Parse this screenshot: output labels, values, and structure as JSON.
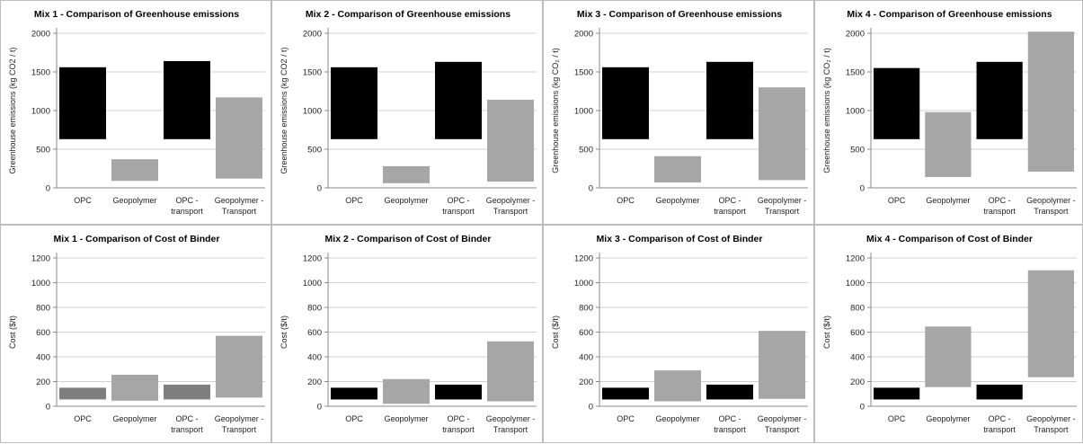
{
  "chart_data": [
    {
      "type": "bar",
      "title": "Mix 1 - Comparison  of Greenhouse emissions",
      "ylabel": "Greenhouse emissions (kg CO2 / t)",
      "ylim": [
        0,
        2000
      ],
      "yticks": [
        0,
        500,
        1000,
        1500,
        2000
      ],
      "categories": [
        "OPC",
        "Geopolymer",
        "OPC -\ntransport",
        "Geopolymer -\nTransport"
      ],
      "bars": [
        {
          "low": 630,
          "high": 1560,
          "color": "#000000"
        },
        {
          "low": 90,
          "high": 370,
          "color": "#a6a6a6"
        },
        {
          "low": 630,
          "high": 1640,
          "color": "#000000"
        },
        {
          "low": 120,
          "high": 1170,
          "color": "#a6a6a6"
        }
      ],
      "grid": true
    },
    {
      "type": "bar",
      "title": "Mix 2 - Comparison  of Greenhouse emissions",
      "ylabel": "Greenhouse emissions (kg CO2 / t)",
      "ylim": [
        0,
        2000
      ],
      "yticks": [
        0,
        500,
        1000,
        1500,
        2000
      ],
      "categories": [
        "OPC",
        "Geopolymer",
        "OPC -\ntransport",
        "Geopolymer -\nTransport"
      ],
      "bars": [
        {
          "low": 630,
          "high": 1560,
          "color": "#000000"
        },
        {
          "low": 60,
          "high": 280,
          "color": "#a6a6a6"
        },
        {
          "low": 630,
          "high": 1630,
          "color": "#000000"
        },
        {
          "low": 80,
          "high": 1140,
          "color": "#a6a6a6"
        }
      ],
      "grid": true
    },
    {
      "type": "bar",
      "title": "Mix 3 - Comparison  of Greenhouse emissions",
      "ylabel": "Greenhouse emissions (kg CO₂ / t)",
      "ylim": [
        0,
        2000
      ],
      "yticks": [
        0,
        500,
        1000,
        1500,
        2000
      ],
      "categories": [
        "OPC",
        "Geopolymer",
        "OPC -\ntransport",
        "Geopolymer -\nTransport"
      ],
      "bars": [
        {
          "low": 630,
          "high": 1560,
          "color": "#000000"
        },
        {
          "low": 70,
          "high": 410,
          "color": "#a6a6a6"
        },
        {
          "low": 630,
          "high": 1630,
          "color": "#000000"
        },
        {
          "low": 100,
          "high": 1300,
          "color": "#a6a6a6"
        }
      ],
      "grid": true
    },
    {
      "type": "bar",
      "title": "Mix 4 - Comparison  of Greenhouse emissions",
      "ylabel": "Greenhouse emissions (kg CO₂ / t)",
      "ylim": [
        0,
        2000
      ],
      "yticks": [
        0,
        500,
        1000,
        1500,
        2000
      ],
      "categories": [
        "OPC",
        "Geopolymer",
        "OPC -\ntransport",
        "Geopolymer -\nTransport"
      ],
      "bars": [
        {
          "low": 630,
          "high": 1550,
          "color": "#000000"
        },
        {
          "low": 140,
          "high": 980,
          "color": "#a6a6a6"
        },
        {
          "low": 630,
          "high": 1630,
          "color": "#000000"
        },
        {
          "low": 210,
          "high": 2020,
          "color": "#a6a6a6"
        }
      ],
      "grid": true
    },
    {
      "type": "bar",
      "title": "Mix 1 - Comparison  of Cost of Binder",
      "ylabel": "Cost ($/t)",
      "ylim": [
        0,
        1200
      ],
      "yticks": [
        0,
        200,
        400,
        600,
        800,
        1000,
        1200
      ],
      "categories": [
        "OPC",
        "Geopolymer",
        "OPC -\ntransport",
        "Geopolymer -\nTransport"
      ],
      "bars": [
        {
          "low": 55,
          "high": 150,
          "color": "#7f7f7f"
        },
        {
          "low": 45,
          "high": 255,
          "color": "#a6a6a6"
        },
        {
          "low": 55,
          "high": 175,
          "color": "#7f7f7f"
        },
        {
          "low": 70,
          "high": 570,
          "color": "#a6a6a6"
        }
      ],
      "grid": true
    },
    {
      "type": "bar",
      "title": "Mix 2 - Comparison  of Cost of Binder",
      "ylabel": "Cost ($/t)",
      "ylim": [
        0,
        1200
      ],
      "yticks": [
        0,
        200,
        400,
        600,
        800,
        1000,
        1200
      ],
      "categories": [
        "OPC",
        "Geopolymer",
        "OPC -\ntransport",
        "Geopolymer -\nTransport"
      ],
      "bars": [
        {
          "low": 55,
          "high": 150,
          "color": "#000000"
        },
        {
          "low": 20,
          "high": 220,
          "color": "#a6a6a6"
        },
        {
          "low": 55,
          "high": 175,
          "color": "#000000"
        },
        {
          "low": 40,
          "high": 525,
          "color": "#a6a6a6"
        }
      ],
      "grid": true
    },
    {
      "type": "bar",
      "title": "Mix 3 - Comparison  of Cost of Binder",
      "ylabel": "Cost ($/t)",
      "ylim": [
        0,
        1200
      ],
      "yticks": [
        0,
        200,
        400,
        600,
        800,
        1000,
        1200
      ],
      "categories": [
        "OPC",
        "Geopolymer",
        "OPC -\ntransport",
        "Geopolymer -\nTransport"
      ],
      "bars": [
        {
          "low": 55,
          "high": 150,
          "color": "#000000"
        },
        {
          "low": 40,
          "high": 290,
          "color": "#a6a6a6"
        },
        {
          "low": 55,
          "high": 175,
          "color": "#000000"
        },
        {
          "low": 60,
          "high": 610,
          "color": "#a6a6a6"
        }
      ],
      "grid": true
    },
    {
      "type": "bar",
      "title": "Mix 4 - Comparison  of Cost of Binder",
      "ylabel": "Cost ($/t)",
      "ylim": [
        0,
        1200
      ],
      "yticks": [
        0,
        200,
        400,
        600,
        800,
        1000,
        1200
      ],
      "categories": [
        "OPC",
        "Geopolymer",
        "OPC -\ntransport",
        "Geopolymer -\nTransport"
      ],
      "bars": [
        {
          "low": 55,
          "high": 150,
          "color": "#000000"
        },
        {
          "low": 155,
          "high": 645,
          "color": "#a6a6a6"
        },
        {
          "low": 55,
          "high": 175,
          "color": "#000000"
        },
        {
          "low": 235,
          "high": 1100,
          "color": "#a6a6a6"
        }
      ],
      "grid": true
    }
  ]
}
